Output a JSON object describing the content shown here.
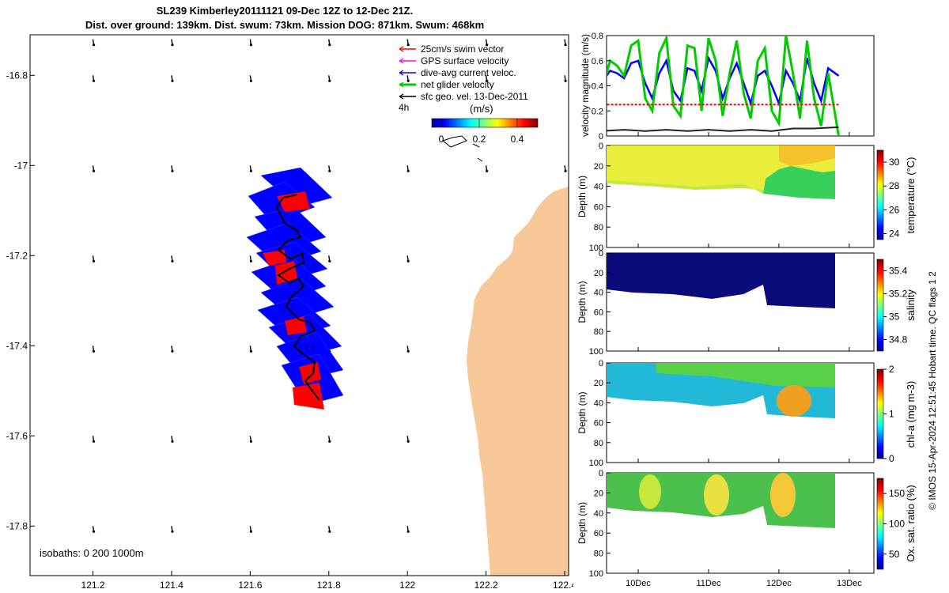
{
  "header": {
    "title_line1": "SL239 Kimberley20111121 09-Dec 12Z to 12-Dec 21Z.",
    "title_line2": "Dist. over ground: 139km. Dist. swum: 73km. Mission DOG: 871km. Swum: 468km"
  },
  "map": {
    "x_ticks": [
      "121.2",
      "121.4",
      "121.6",
      "121.8",
      "122",
      "122.2",
      "122.4"
    ],
    "y_ticks": [
      "-16.8",
      "-17",
      "-17.2",
      "-17.4",
      "-17.6",
      "-17.8"
    ],
    "xlim": [
      121.04,
      122.41
    ],
    "ylim": [
      -17.91,
      -16.71
    ],
    "legend": [
      {
        "label": "25cm/s swim vector",
        "color": "#ff0000"
      },
      {
        "label": "GPS surface velocity",
        "color": "#ff00ff"
      },
      {
        "label": "dive-avg current veloc.",
        "color": "#0000ff"
      },
      {
        "label": "net glider velocity",
        "color": "#00cc00"
      },
      {
        "label": "sfc geo. vel. 13-Dec-2011",
        "color": "#000000"
      }
    ],
    "legend_extra": "4h",
    "colorbar_label": "(m/s)",
    "colorbar_ticks": [
      "0",
      "0.2",
      "0.4"
    ],
    "isobaths_label": "isobaths: 0   200  1000m",
    "track_marker": "12",
    "colors": {
      "land": "#f9c898",
      "glider_vectors": "#0000ff",
      "swim": "#ff0000",
      "track": "#000000"
    }
  },
  "panels": {
    "x_ticks": [
      "10Dec",
      "11Dec",
      "12Dec",
      "13Dec"
    ],
    "depth_ticks": [
      "0",
      "20",
      "40",
      "60",
      "80",
      "100"
    ],
    "velocity": {
      "ylabel": "velocity magnitude (m/s)",
      "y_ticks": [
        "0",
        "0.2",
        "0.4",
        "0.6",
        "0.8"
      ],
      "ylim": [
        0,
        0.8
      ]
    },
    "temperature": {
      "ylabel": "Depth (m)",
      "cbar_label": "temperature (°C)",
      "cbar_ticks": [
        "24",
        "26",
        "28",
        "30"
      ]
    },
    "salinity": {
      "ylabel": "Depth (m)",
      "cbar_label": "salinity",
      "cbar_ticks": [
        "34.8",
        "35",
        "35.2",
        "35.4"
      ]
    },
    "chla": {
      "ylabel": "Depth (m)",
      "cbar_label": "chl-a (mg m-3)",
      "cbar_ticks": [
        "0",
        "1",
        "2"
      ]
    },
    "oxygen": {
      "ylabel": "Depth (m)",
      "cbar_label": "Ox. sat. ratio (%)",
      "cbar_ticks": [
        "50",
        "100",
        "150"
      ]
    }
  },
  "footer": {
    "credit": "© IMOS 15-Apr-2024 12:51:45 Hobart time. QC flags 1  2"
  },
  "chart_data": [
    {
      "type": "line",
      "title": "",
      "xlabel": "",
      "ylabel": "velocity magnitude (m/s)",
      "ylim": [
        0,
        0.8
      ],
      "series": [
        {
          "name": "dive-avg current veloc.",
          "color": "#0000ff",
          "x": [
            9.5,
            9.6,
            9.7,
            9.8,
            9.9,
            10.0,
            10.1,
            10.2,
            10.3,
            10.4,
            10.5,
            10.6,
            10.7,
            10.8,
            10.9,
            11.0,
            11.1,
            11.2,
            11.3,
            11.4,
            11.5,
            11.6,
            11.7,
            11.8,
            11.9,
            12.0,
            12.1,
            12.2,
            12.3,
            12.4,
            12.5,
            12.6,
            12.7,
            12.85
          ],
          "values": [
            0.44,
            0.52,
            0.5,
            0.46,
            0.58,
            0.6,
            0.42,
            0.3,
            0.5,
            0.6,
            0.36,
            0.28,
            0.54,
            0.52,
            0.36,
            0.62,
            0.52,
            0.3,
            0.46,
            0.58,
            0.42,
            0.26,
            0.48,
            0.52,
            0.4,
            0.26,
            0.52,
            0.42,
            0.28,
            0.62,
            0.42,
            0.28,
            0.54,
            0.48
          ]
        },
        {
          "name": "net glider velocity",
          "color": "#00cc00",
          "x": [
            9.5,
            9.6,
            9.7,
            9.8,
            9.9,
            10.0,
            10.1,
            10.2,
            10.3,
            10.4,
            10.5,
            10.6,
            10.7,
            10.8,
            10.9,
            11.0,
            11.1,
            11.2,
            11.3,
            11.4,
            11.5,
            11.6,
            11.7,
            11.8,
            11.9,
            12.0,
            12.1,
            12.2,
            12.3,
            12.4,
            12.5,
            12.6,
            12.7,
            12.85
          ],
          "values": [
            0.4,
            0.6,
            0.56,
            0.48,
            0.72,
            0.76,
            0.3,
            0.2,
            0.66,
            0.78,
            0.24,
            0.16,
            0.72,
            0.7,
            0.2,
            0.78,
            0.6,
            0.16,
            0.5,
            0.76,
            0.34,
            0.14,
            0.6,
            0.7,
            0.2,
            0.1,
            0.8,
            0.5,
            0.14,
            0.76,
            0.3,
            0.08,
            0.5,
            0.0
          ]
        },
        {
          "name": "25cm/s swim vector",
          "color": "#ff0000",
          "x": [
            9.5,
            12.85
          ],
          "values": [
            0.25,
            0.25
          ]
        },
        {
          "name": "sfc geo. vel. 13-Dec-2011",
          "color": "#222222",
          "x": [
            9.5,
            9.8,
            10.1,
            10.4,
            10.7,
            11.0,
            11.3,
            11.6,
            11.9,
            12.2,
            12.5,
            12.85
          ],
          "values": [
            0.04,
            0.05,
            0.04,
            0.05,
            0.04,
            0.05,
            0.04,
            0.05,
            0.04,
            0.06,
            0.06,
            0.07
          ]
        }
      ]
    }
  ]
}
